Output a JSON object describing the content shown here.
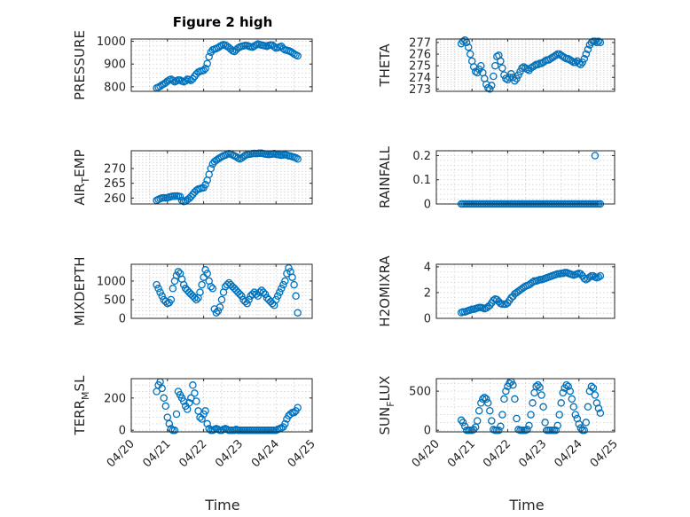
{
  "figure": {
    "title": "Figure 2 high",
    "marker_color": "#0072BD"
  },
  "x_ticks": [
    "04/20",
    "04/21",
    "04/22",
    "04/23",
    "04/24",
    "04/25"
  ],
  "x_label": "Time",
  "chart_data": [
    {
      "type": "scatter",
      "id": "pressure",
      "ylabel": "PRESSURE",
      "ylim": [
        780,
        1010
      ],
      "yticks": [
        800,
        900,
        1000
      ],
      "xlim": [
        0,
        5
      ],
      "grid": true,
      "x": [
        0.7,
        0.75,
        0.8,
        0.85,
        0.9,
        0.95,
        1.0,
        1.05,
        1.1,
        1.15,
        1.2,
        1.25,
        1.3,
        1.35,
        1.4,
        1.45,
        1.5,
        1.55,
        1.6,
        1.65,
        1.7,
        1.75,
        1.8,
        1.85,
        1.9,
        1.95,
        2.0,
        2.05,
        2.1,
        2.15,
        2.2,
        2.25,
        2.3,
        2.35,
        2.4,
        2.45,
        2.5,
        2.55,
        2.6,
        2.65,
        2.7,
        2.75,
        2.8,
        2.85,
        2.9,
        2.95,
        3.0,
        3.05,
        3.1,
        3.15,
        3.2,
        3.25,
        3.3,
        3.35,
        3.4,
        3.45,
        3.5,
        3.55,
        3.6,
        3.65,
        3.7,
        3.75,
        3.8,
        3.85,
        3.9,
        3.95,
        4.0,
        4.05,
        4.1,
        4.15,
        4.2,
        4.25,
        4.3,
        4.35,
        4.4,
        4.45,
        4.5,
        4.55,
        4.6
      ],
      "y": [
        795,
        798,
        802,
        808,
        812,
        818,
        825,
        830,
        833,
        828,
        822,
        826,
        830,
        829,
        825,
        822,
        826,
        833,
        832,
        828,
        835,
        846,
        856,
        864,
        868,
        870,
        872,
        880,
        902,
        932,
        952,
        962,
        965,
        968,
        972,
        978,
        982,
        985,
        983,
        978,
        972,
        965,
        958,
        955,
        962,
        970,
        975,
        978,
        980,
        982,
        981,
        978,
        976,
        974,
        979,
        984,
        988,
        986,
        983,
        982,
        980,
        978,
        982,
        984,
        983,
        976,
        970,
        972,
        975,
        978,
        968,
        962,
        960,
        958,
        955,
        950,
        944,
        940,
        936
      ]
    },
    {
      "type": "scatter",
      "id": "theta",
      "ylabel": "THETA",
      "ylim": [
        272.8,
        277.3
      ],
      "yticks": [
        273,
        274,
        275,
        276,
        277
      ],
      "xlim": [
        0,
        5
      ],
      "grid": true,
      "x": [
        0.7,
        0.75,
        0.8,
        0.85,
        0.9,
        0.95,
        1.0,
        1.05,
        1.1,
        1.15,
        1.2,
        1.25,
        1.3,
        1.35,
        1.4,
        1.45,
        1.5,
        1.55,
        1.6,
        1.65,
        1.7,
        1.75,
        1.8,
        1.85,
        1.9,
        1.95,
        2.0,
        2.05,
        2.1,
        2.15,
        2.2,
        2.25,
        2.3,
        2.35,
        2.4,
        2.45,
        2.5,
        2.55,
        2.6,
        2.65,
        2.7,
        2.75,
        2.8,
        2.85,
        2.9,
        2.95,
        3.0,
        3.05,
        3.1,
        3.15,
        3.2,
        3.25,
        3.3,
        3.35,
        3.4,
        3.45,
        3.5,
        3.55,
        3.6,
        3.65,
        3.7,
        3.75,
        3.8,
        3.85,
        3.9,
        3.95,
        4.0,
        4.05,
        4.1,
        4.15,
        4.2,
        4.25,
        4.3,
        4.35,
        4.4,
        4.45,
        4.5,
        4.55,
        4.6
      ],
      "y": [
        276.9,
        277.1,
        277.2,
        277.0,
        276.6,
        276.0,
        275.4,
        274.9,
        274.5,
        274.4,
        274.7,
        275.0,
        274.4,
        273.9,
        273.4,
        273.1,
        273.0,
        273.3,
        274.1,
        275.0,
        275.8,
        275.9,
        275.4,
        274.8,
        274.2,
        273.9,
        273.8,
        274.0,
        274.3,
        274.0,
        273.7,
        273.9,
        274.2,
        274.5,
        274.8,
        274.9,
        274.8,
        274.7,
        274.6,
        274.8,
        274.9,
        275.0,
        275.1,
        275.1,
        275.2,
        275.2,
        275.3,
        275.4,
        275.5,
        275.5,
        275.6,
        275.7,
        275.8,
        275.9,
        276.0,
        276.0,
        275.9,
        275.8,
        275.7,
        275.6,
        275.6,
        275.5,
        275.4,
        275.3,
        275.3,
        275.4,
        275.2,
        275.1,
        275.3,
        275.6,
        276.0,
        276.4,
        276.8,
        277.0,
        277.1,
        277.1,
        277.0,
        277.1,
        277.0
      ]
    },
    {
      "type": "scatter",
      "id": "air_temp",
      "ylabel": "AIR_TEMP",
      "ylabel_parts": [
        "AIR",
        "T",
        "EMP"
      ],
      "ylim": [
        258.0,
        276.0
      ],
      "yticks": [
        260,
        265,
        270
      ],
      "xlim": [
        0,
        5
      ],
      "grid": true,
      "x": [
        0.7,
        0.75,
        0.8,
        0.85,
        0.9,
        0.95,
        1.0,
        1.05,
        1.1,
        1.15,
        1.2,
        1.25,
        1.3,
        1.35,
        1.4,
        1.45,
        1.5,
        1.55,
        1.6,
        1.65,
        1.7,
        1.75,
        1.8,
        1.85,
        1.9,
        1.95,
        2.0,
        2.05,
        2.1,
        2.15,
        2.2,
        2.25,
        2.3,
        2.35,
        2.4,
        2.45,
        2.5,
        2.55,
        2.6,
        2.65,
        2.7,
        2.75,
        2.8,
        2.85,
        2.9,
        2.95,
        3.0,
        3.05,
        3.1,
        3.15,
        3.2,
        3.25,
        3.3,
        3.35,
        3.4,
        3.45,
        3.5,
        3.55,
        3.6,
        3.65,
        3.7,
        3.75,
        3.8,
        3.85,
        3.9,
        3.95,
        4.0,
        4.05,
        4.1,
        4.15,
        4.2,
        4.25,
        4.3,
        4.35,
        4.4,
        4.45,
        4.5,
        4.55,
        4.6
      ],
      "y": [
        259.2,
        259.5,
        259.8,
        260.0,
        260.1,
        260.0,
        260.1,
        260.3,
        260.5,
        260.6,
        260.6,
        260.7,
        260.6,
        260.5,
        259.2,
        258.8,
        259.0,
        259.4,
        259.9,
        260.5,
        261.2,
        262.0,
        262.6,
        263.0,
        263.2,
        263.4,
        263.5,
        264.5,
        266.0,
        268.0,
        270.0,
        271.5,
        272.3,
        272.8,
        273.2,
        273.6,
        274.0,
        274.3,
        274.5,
        274.8,
        275.0,
        274.9,
        274.6,
        274.3,
        274.0,
        273.5,
        273.2,
        273.5,
        274.0,
        274.4,
        274.7,
        274.8,
        274.9,
        275.0,
        275.1,
        275.0,
        275.1,
        275.2,
        275.2,
        275.0,
        274.9,
        274.8,
        274.7,
        274.8,
        274.9,
        275.0,
        274.8,
        274.7,
        274.6,
        274.5,
        274.6,
        274.7,
        274.5,
        274.3,
        274.2,
        274.0,
        273.8,
        273.6,
        273.2
      ]
    },
    {
      "type": "scatter",
      "id": "rainfall",
      "ylabel": "RAINFALL",
      "ylim": [
        0,
        0.22
      ],
      "yticks": [
        0,
        0.1,
        0.2
      ],
      "xlim": [
        0,
        5
      ],
      "grid": true,
      "x": [
        0.7,
        0.75,
        0.8,
        0.85,
        0.9,
        0.95,
        1.0,
        1.05,
        1.1,
        1.15,
        1.2,
        1.25,
        1.3,
        1.35,
        1.4,
        1.45,
        1.5,
        1.55,
        1.6,
        1.65,
        1.7,
        1.75,
        1.8,
        1.85,
        1.9,
        1.95,
        2.0,
        2.05,
        2.1,
        2.15,
        2.2,
        2.25,
        2.3,
        2.35,
        2.4,
        2.45,
        2.5,
        2.55,
        2.6,
        2.65,
        2.7,
        2.75,
        2.8,
        2.85,
        2.9,
        2.95,
        3.0,
        3.05,
        3.1,
        3.15,
        3.2,
        3.25,
        3.3,
        3.35,
        3.4,
        3.45,
        3.5,
        3.55,
        3.6,
        3.65,
        3.7,
        3.75,
        3.8,
        3.85,
        3.9,
        3.95,
        4.0,
        4.05,
        4.1,
        4.15,
        4.2,
        4.25,
        4.3,
        4.35,
        4.4,
        4.45,
        4.5,
        4.55,
        4.6,
        4.45
      ],
      "y": [
        0,
        0,
        0,
        0,
        0,
        0,
        0,
        0,
        0,
        0,
        0,
        0,
        0,
        0,
        0,
        0,
        0,
        0,
        0,
        0,
        0,
        0,
        0,
        0,
        0,
        0,
        0,
        0,
        0,
        0,
        0,
        0,
        0,
        0,
        0,
        0,
        0,
        0,
        0,
        0,
        0,
        0,
        0,
        0,
        0,
        0,
        0,
        0,
        0,
        0,
        0,
        0,
        0,
        0,
        0,
        0,
        0,
        0,
        0,
        0,
        0,
        0,
        0,
        0,
        0,
        0,
        0,
        0,
        0,
        0,
        0,
        0,
        0,
        0,
        0,
        0,
        0,
        0,
        0,
        0.2
      ]
    },
    {
      "type": "scatter",
      "id": "mixdepth",
      "ylabel": "MIXDEPTH",
      "ylim": [
        0,
        1450
      ],
      "yticks": [
        0,
        500,
        1000
      ],
      "xlim": [
        0,
        5
      ],
      "grid": true,
      "x": [
        0.7,
        0.75,
        0.8,
        0.85,
        0.9,
        0.95,
        1.0,
        1.05,
        1.1,
        1.15,
        1.2,
        1.25,
        1.3,
        1.35,
        1.4,
        1.45,
        1.5,
        1.55,
        1.6,
        1.65,
        1.7,
        1.75,
        1.8,
        1.85,
        1.9,
        1.95,
        2.0,
        2.05,
        2.1,
        2.15,
        2.2,
        2.25,
        2.3,
        2.35,
        2.4,
        2.45,
        2.5,
        2.55,
        2.6,
        2.65,
        2.7,
        2.75,
        2.8,
        2.85,
        2.9,
        2.95,
        3.0,
        3.05,
        3.1,
        3.15,
        3.2,
        3.25,
        3.3,
        3.35,
        3.4,
        3.45,
        3.5,
        3.55,
        3.6,
        3.65,
        3.7,
        3.75,
        3.8,
        3.85,
        3.9,
        3.95,
        4.0,
        4.05,
        4.1,
        4.15,
        4.2,
        4.25,
        4.3,
        4.35,
        4.4,
        4.45,
        4.5,
        4.55,
        4.6
      ],
      "y": [
        900,
        800,
        700,
        600,
        500,
        450,
        400,
        420,
        500,
        800,
        1000,
        1150,
        1250,
        1200,
        1050,
        900,
        800,
        750,
        700,
        650,
        600,
        550,
        500,
        550,
        700,
        900,
        1100,
        1300,
        1200,
        1000,
        850,
        800,
        250,
        150,
        200,
        300,
        500,
        700,
        850,
        900,
        950,
        900,
        850,
        800,
        750,
        700,
        650,
        600,
        500,
        450,
        400,
        500,
        600,
        650,
        700,
        650,
        600,
        700,
        750,
        700,
        650,
        550,
        500,
        450,
        400,
        350,
        500,
        600,
        700,
        800,
        900,
        1000,
        1200,
        1350,
        1250,
        1100,
        900,
        600,
        150
      ]
    },
    {
      "type": "scatter",
      "id": "h2omixra",
      "ylabel": "H2OMIXRA",
      "ylim": [
        0,
        4.2
      ],
      "yticks": [
        0,
        2,
        4
      ],
      "xlim": [
        0,
        5
      ],
      "grid": true,
      "x": [
        0.7,
        0.75,
        0.8,
        0.85,
        0.9,
        0.95,
        1.0,
        1.05,
        1.1,
        1.15,
        1.2,
        1.25,
        1.3,
        1.35,
        1.4,
        1.45,
        1.5,
        1.55,
        1.6,
        1.65,
        1.7,
        1.75,
        1.8,
        1.85,
        1.9,
        1.95,
        2.0,
        2.05,
        2.1,
        2.15,
        2.2,
        2.25,
        2.3,
        2.35,
        2.4,
        2.45,
        2.5,
        2.55,
        2.6,
        2.65,
        2.7,
        2.75,
        2.8,
        2.85,
        2.9,
        2.95,
        3.0,
        3.05,
        3.1,
        3.15,
        3.2,
        3.25,
        3.3,
        3.35,
        3.4,
        3.45,
        3.5,
        3.55,
        3.6,
        3.65,
        3.7,
        3.75,
        3.8,
        3.85,
        3.9,
        3.95,
        4.0,
        4.05,
        4.1,
        4.15,
        4.2,
        4.25,
        4.3,
        4.35,
        4.4,
        4.45,
        4.5,
        4.55,
        4.6
      ],
      "y": [
        0.45,
        0.5,
        0.5,
        0.55,
        0.6,
        0.65,
        0.7,
        0.7,
        0.75,
        0.8,
        0.85,
        0.85,
        0.8,
        0.75,
        0.8,
        0.9,
        1.0,
        1.2,
        1.4,
        1.5,
        1.45,
        1.3,
        1.15,
        1.1,
        1.1,
        1.1,
        1.2,
        1.4,
        1.6,
        1.7,
        1.9,
        2.0,
        2.1,
        2.2,
        2.3,
        2.4,
        2.5,
        2.55,
        2.6,
        2.7,
        2.8,
        2.9,
        2.9,
        2.95,
        3.0,
        3.0,
        3.05,
        3.1,
        3.15,
        3.2,
        3.25,
        3.3,
        3.35,
        3.4,
        3.45,
        3.45,
        3.5,
        3.5,
        3.55,
        3.55,
        3.5,
        3.45,
        3.4,
        3.35,
        3.4,
        3.45,
        3.5,
        3.45,
        3.3,
        3.1,
        3.0,
        3.1,
        3.2,
        3.3,
        3.3,
        3.2,
        3.15,
        3.2,
        3.3
      ]
    },
    {
      "type": "scatter",
      "id": "terr_msl",
      "ylabel": "TERR_MSL",
      "ylabel_parts": [
        "TERR",
        "M",
        "SL"
      ],
      "ylim": [
        -10,
        320
      ],
      "yticks": [
        0,
        200
      ],
      "xlim": [
        0,
        5
      ],
      "grid": true,
      "x": [
        0.7,
        0.75,
        0.8,
        0.85,
        0.9,
        0.95,
        1.0,
        1.05,
        1.1,
        1.15,
        1.2,
        1.25,
        1.3,
        1.35,
        1.4,
        1.45,
        1.5,
        1.55,
        1.6,
        1.65,
        1.7,
        1.75,
        1.8,
        1.85,
        1.9,
        1.95,
        2.0,
        2.05,
        2.1,
        2.15,
        2.2,
        2.25,
        2.3,
        2.35,
        2.4,
        2.45,
        2.5,
        2.55,
        2.6,
        2.65,
        2.7,
        2.75,
        2.8,
        2.85,
        2.9,
        2.95,
        3.0,
        3.05,
        3.1,
        3.15,
        3.2,
        3.25,
        3.3,
        3.35,
        3.4,
        3.45,
        3.5,
        3.55,
        3.6,
        3.65,
        3.7,
        3.75,
        3.8,
        3.85,
        3.9,
        3.95,
        4.0,
        4.05,
        4.1,
        4.15,
        4.2,
        4.25,
        4.3,
        4.35,
        4.4,
        4.45,
        4.5,
        4.55,
        4.6
      ],
      "y": [
        240,
        280,
        300,
        260,
        200,
        150,
        80,
        40,
        10,
        0,
        0,
        100,
        240,
        220,
        200,
        180,
        150,
        130,
        170,
        200,
        280,
        230,
        180,
        120,
        80,
        70,
        100,
        120,
        40,
        10,
        0,
        0,
        5,
        10,
        5,
        0,
        0,
        5,
        10,
        5,
        0,
        0,
        0,
        0,
        5,
        0,
        0,
        0,
        0,
        0,
        0,
        0,
        0,
        0,
        0,
        0,
        0,
        0,
        0,
        0,
        0,
        0,
        0,
        0,
        0,
        0,
        0,
        5,
        10,
        15,
        20,
        40,
        70,
        90,
        100,
        110,
        110,
        120,
        140
      ]
    },
    {
      "type": "scatter",
      "id": "sun_flux",
      "ylabel": "SUN_FLUX",
      "ylabel_parts": [
        "SUN",
        "F",
        "LUX"
      ],
      "ylim": [
        -20,
        660
      ],
      "yticks": [
        0,
        500
      ],
      "xlim": [
        0,
        5
      ],
      "grid": true,
      "x": [
        0.7,
        0.75,
        0.8,
        0.85,
        0.9,
        0.95,
        1.0,
        1.05,
        1.1,
        1.15,
        1.2,
        1.25,
        1.3,
        1.35,
        1.4,
        1.45,
        1.5,
        1.55,
        1.6,
        1.65,
        1.7,
        1.75,
        1.8,
        1.85,
        1.9,
        1.95,
        2.0,
        2.05,
        2.1,
        2.15,
        2.2,
        2.25,
        2.3,
        2.35,
        2.4,
        2.45,
        2.5,
        2.55,
        2.6,
        2.65,
        2.7,
        2.75,
        2.8,
        2.85,
        2.9,
        2.95,
        3.0,
        3.05,
        3.1,
        3.15,
        3.2,
        3.25,
        3.3,
        3.35,
        3.4,
        3.45,
        3.5,
        3.55,
        3.6,
        3.65,
        3.7,
        3.75,
        3.8,
        3.85,
        3.9,
        3.95,
        4.0,
        4.05,
        4.1,
        4.15,
        4.2,
        4.25,
        4.3,
        4.35,
        4.4,
        4.45,
        4.5,
        4.55,
        4.6
      ],
      "y": [
        130,
        100,
        50,
        0,
        0,
        0,
        0,
        10,
        40,
        120,
        250,
        350,
        400,
        420,
        400,
        350,
        250,
        120,
        10,
        0,
        0,
        0,
        50,
        200,
        400,
        500,
        560,
        600,
        620,
        580,
        400,
        150,
        10,
        0,
        0,
        0,
        0,
        10,
        60,
        200,
        350,
        480,
        560,
        580,
        550,
        450,
        300,
        100,
        0,
        0,
        0,
        0,
        0,
        0,
        60,
        200,
        350,
        480,
        540,
        580,
        560,
        500,
        400,
        300,
        200,
        150,
        80,
        30,
        0,
        0,
        100,
        300,
        500,
        560,
        540,
        450,
        350,
        280,
        220
      ]
    }
  ]
}
